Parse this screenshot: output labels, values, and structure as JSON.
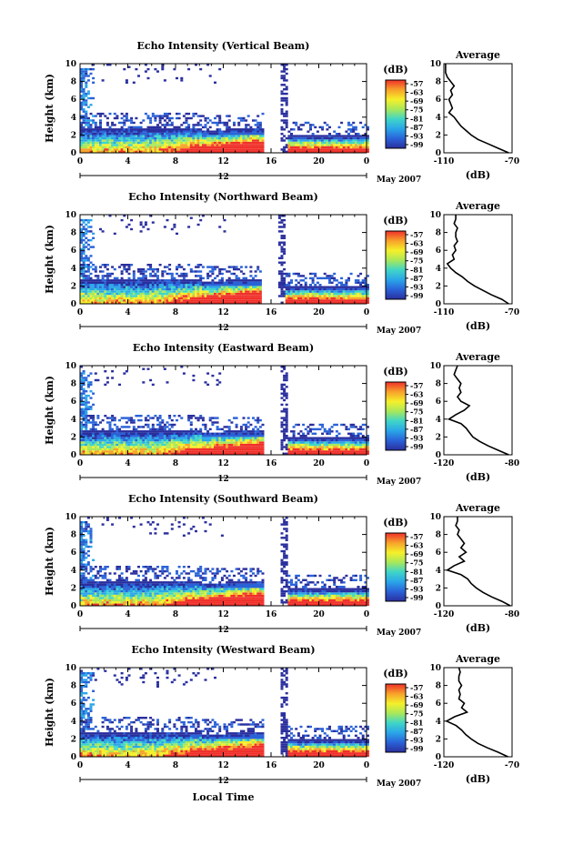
{
  "figure": {
    "x_axis_label": "Local Time",
    "date_label": "May 2007",
    "colorbar_unit": "(dB)",
    "colorbar_ticks": [
      "-57",
      "-63",
      "-69",
      "-75",
      "-81",
      "-87",
      "-93",
      "-99"
    ],
    "colormap": [
      "#f0302a",
      "#f7a22a",
      "#f5f02a",
      "#a8e85a",
      "#3fd6c8",
      "#2aa6e8",
      "#2a62d8",
      "#2a2f9e"
    ]
  },
  "chart_data": [
    {
      "type": "heatmap",
      "title": "Echo Intensity (Vertical Beam)",
      "ylabel": "Height (km)",
      "xlim": [
        0,
        24
      ],
      "ylim": [
        0,
        10
      ],
      "x_ticks": [
        "0",
        "4",
        "8",
        "12",
        "16",
        "20",
        "0"
      ],
      "y_ticks": [
        "0",
        "2",
        "4",
        "6",
        "8",
        "10"
      ],
      "x_center_label": "12",
      "data_gap_hours": [
        15.2,
        17.3
      ],
      "profile": {
        "title": "Average",
        "xlabel": "(dB)",
        "xlim": [
          -110,
          -70
        ],
        "x_ticks": [
          "-110",
          "-70"
        ],
        "y_ticks": [
          "0",
          "2",
          "4",
          "6",
          "8",
          "10"
        ],
        "heights_km": [
          0,
          0.5,
          1,
          1.5,
          2,
          2.5,
          3,
          3.5,
          4,
          4.5,
          5,
          5.5,
          6,
          6.5,
          7,
          7.5,
          8,
          8.5,
          9,
          9.5,
          10
        ],
        "values_db": [
          -72,
          -78,
          -84,
          -90,
          -94,
          -97,
          -100,
          -102,
          -104,
          -107,
          -105,
          -106,
          -107,
          -105,
          -106,
          -104,
          -106,
          -108,
          -109,
          -109,
          -109
        ]
      }
    },
    {
      "type": "heatmap",
      "title": "Echo Intensity (Northward Beam)",
      "ylabel": "Height (km)",
      "xlim": [
        0,
        24
      ],
      "ylim": [
        0,
        10
      ],
      "x_ticks": [
        "0",
        "4",
        "8",
        "12",
        "16",
        "20",
        "0"
      ],
      "y_ticks": [
        "0",
        "2",
        "4",
        "6",
        "8",
        "10"
      ],
      "x_center_label": "12",
      "data_gap_hours": [
        15.0,
        17.0
      ],
      "profile": {
        "title": "Average",
        "xlabel": "(dB)",
        "xlim": [
          -110,
          -70
        ],
        "x_ticks": [
          "-110",
          "-70"
        ],
        "y_ticks": [
          "0",
          "2",
          "4",
          "6",
          "8",
          "10"
        ],
        "heights_km": [
          0,
          0.5,
          1,
          1.5,
          2,
          2.5,
          3,
          3.5,
          4,
          4.5,
          5,
          5.5,
          6,
          6.5,
          7,
          7.5,
          8,
          8.5,
          9,
          9.5,
          10
        ],
        "values_db": [
          -72,
          -76,
          -82,
          -87,
          -92,
          -96,
          -99,
          -103,
          -106,
          -108,
          -104,
          -105,
          -103,
          -104,
          -102,
          -103,
          -103,
          -102,
          -104,
          -103,
          -103
        ]
      }
    },
    {
      "type": "heatmap",
      "title": "Echo Intensity (Eastward Beam)",
      "ylabel": "Height (km)",
      "xlim": [
        0,
        24
      ],
      "ylim": [
        0,
        10
      ],
      "x_ticks": [
        "0",
        "4",
        "8",
        "12",
        "16",
        "20",
        "0"
      ],
      "y_ticks": [
        "0",
        "2",
        "4",
        "6",
        "8",
        "10"
      ],
      "x_center_label": "12",
      "data_gap_hours": [
        15.2,
        17.3
      ],
      "profile": {
        "title": "Average",
        "xlabel": "(dB)",
        "xlim": [
          -120,
          -80
        ],
        "x_ticks": [
          "-120",
          "-80"
        ],
        "y_ticks": [
          "0",
          "2",
          "4",
          "6",
          "8",
          "10"
        ],
        "heights_km": [
          0,
          0.5,
          1,
          1.5,
          2,
          2.5,
          3,
          3.5,
          4,
          4.5,
          5,
          5.5,
          6,
          6.5,
          7,
          7.5,
          8,
          8.5,
          9,
          9.5,
          10
        ],
        "values_db": [
          -82,
          -88,
          -94,
          -99,
          -103,
          -105,
          -107,
          -110,
          -117,
          -113,
          -108,
          -105,
          -110,
          -112,
          -110,
          -111,
          -110,
          -112,
          -114,
          -113,
          -112
        ]
      }
    },
    {
      "type": "heatmap",
      "title": "Echo Intensity (Southward Beam)",
      "ylabel": "Height (km)",
      "xlim": [
        0,
        24
      ],
      "ylim": [
        0,
        10
      ],
      "x_ticks": [
        "0",
        "4",
        "8",
        "12",
        "16",
        "20",
        "0"
      ],
      "y_ticks": [
        "0",
        "2",
        "4",
        "6",
        "8",
        "10"
      ],
      "x_center_label": "12",
      "data_gap_hours": [
        15.3,
        17.3
      ],
      "profile": {
        "title": "Average",
        "xlabel": "(dB)",
        "xlim": [
          -120,
          -80
        ],
        "x_ticks": [
          "-120",
          "-80"
        ],
        "y_ticks": [
          "0",
          "2",
          "4",
          "6",
          "8",
          "10"
        ],
        "heights_km": [
          0,
          0.5,
          1,
          1.5,
          2,
          2.5,
          3,
          3.5,
          4,
          4.5,
          5,
          5.5,
          6,
          6.5,
          7,
          7.5,
          8,
          8.5,
          9,
          9.5,
          10
        ],
        "values_db": [
          -81,
          -86,
          -92,
          -97,
          -101,
          -104,
          -106,
          -110,
          -118,
          -114,
          -108,
          -111,
          -107,
          -110,
          -108,
          -110,
          -112,
          -111,
          -113,
          -112,
          -112
        ]
      }
    },
    {
      "type": "heatmap",
      "title": "Echo Intensity (Westward Beam)",
      "ylabel": "Height (km)",
      "xlim": [
        0,
        24
      ],
      "ylim": [
        0,
        10
      ],
      "x_ticks": [
        "0",
        "4",
        "8",
        "12",
        "16",
        "20",
        "0"
      ],
      "y_ticks": [
        "0",
        "2",
        "4",
        "6",
        "8",
        "10"
      ],
      "x_center_label": "12",
      "data_gap_hours": [
        15.2,
        17.3
      ],
      "profile": {
        "title": "Average",
        "xlabel": "(dB)",
        "xlim": [
          -120,
          -70
        ],
        "x_ticks": [
          "-120",
          "-70"
        ],
        "y_ticks": [
          "0",
          "2",
          "4",
          "6",
          "8",
          "10"
        ],
        "heights_km": [
          0,
          0.5,
          1,
          1.5,
          2,
          2.5,
          3,
          3.5,
          4,
          4.5,
          5,
          5.5,
          6,
          6.5,
          7,
          7.5,
          8,
          8.5,
          9,
          9.5,
          10
        ],
        "values_db": [
          -73,
          -80,
          -88,
          -95,
          -100,
          -104,
          -107,
          -111,
          -118,
          -112,
          -103,
          -107,
          -105,
          -109,
          -108,
          -109,
          -107,
          -109,
          -109,
          -108,
          -109
        ]
      }
    }
  ]
}
